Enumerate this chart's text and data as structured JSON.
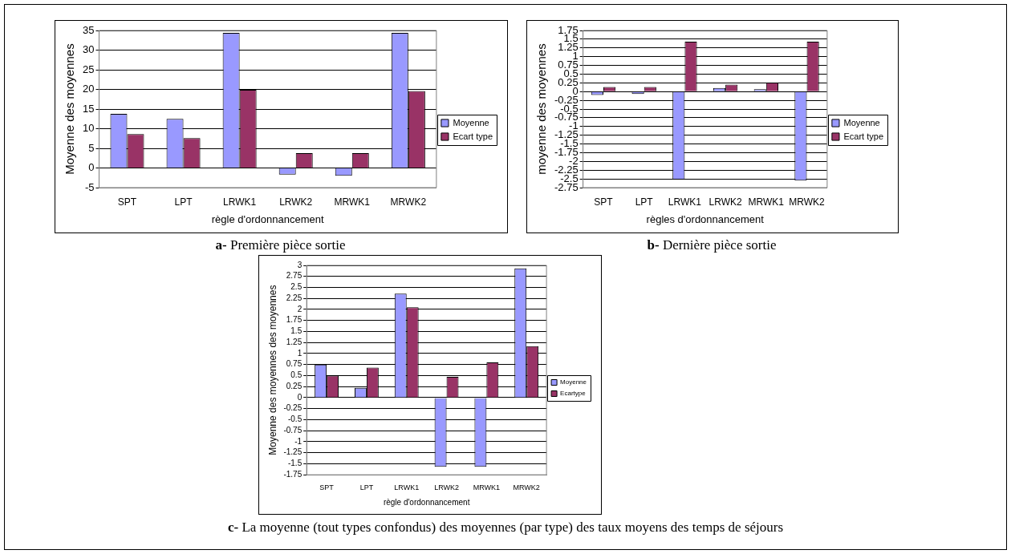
{
  "chart_data": [
    {
      "type": "bar",
      "xlabel": "règle d'ordonnancement",
      "ylabel": "Moyenne des moyennes",
      "categories": [
        "SPT",
        "LPT",
        "LRWK1",
        "LRWK2",
        "MRWK1",
        "MRWK2"
      ],
      "series": [
        {
          "name": "Moyenne",
          "color": "#9999ff",
          "values": [
            13.8,
            12.5,
            34.4,
            -1.7,
            -2.0,
            34.4
          ]
        },
        {
          "name": "Ecart type",
          "color": "#993366",
          "values": [
            8.6,
            7.6,
            19.9,
            3.8,
            3.8,
            19.6
          ]
        }
      ],
      "ylim": [
        -5,
        35
      ],
      "yticks": [
        -5,
        0,
        5,
        10,
        15,
        20,
        25,
        30,
        35
      ],
      "grid": "y",
      "legend": "right",
      "annotations": [
        "a- Première pièce sortie"
      ]
    },
    {
      "type": "bar",
      "xlabel": "règles d'ordonnancement",
      "ylabel": "moyenne des moyennes",
      "categories": [
        "SPT",
        "LPT",
        "LRWK1",
        "LRWK2",
        "MRWK1",
        "MRWK2"
      ],
      "series": [
        {
          "name": "Moyenne",
          "color": "#9999ff",
          "values": [
            -0.1,
            -0.07,
            -2.52,
            0.1,
            0.07,
            -2.55
          ]
        },
        {
          "name": "Ecart type",
          "color": "#993366",
          "values": [
            0.13,
            0.13,
            1.43,
            0.2,
            0.26,
            1.43
          ]
        }
      ],
      "ylim": [
        -2.75,
        1.75
      ],
      "yticks": [
        -2.75,
        -2.5,
        -2.25,
        -2,
        -1.75,
        -1.5,
        -1.25,
        -1,
        -0.75,
        -0.5,
        -0.25,
        0,
        0.25,
        0.5,
        0.75,
        1,
        1.25,
        1.5,
        1.75
      ],
      "grid": "y",
      "legend": "right",
      "annotations": [
        "b- Dernière pièce sortie"
      ]
    },
    {
      "type": "bar",
      "xlabel": "règle d'ordonnancement",
      "ylabel": "Moyenne des moyennes des moyennes",
      "categories": [
        "SPT",
        "LPT",
        "LRWK1",
        "LRWK2",
        "MRWK1",
        "MRWK2"
      ],
      "series": [
        {
          "name": "Moyenne",
          "color": "#9999ff",
          "values": [
            0.75,
            0.22,
            2.36,
            -1.57,
            -1.57,
            2.93
          ]
        },
        {
          "name": "Ecartype",
          "color": "#993366",
          "values": [
            0.5,
            0.68,
            2.05,
            0.47,
            0.8,
            1.17
          ]
        }
      ],
      "ylim": [
        -1.75,
        3
      ],
      "yticks": [
        -1.75,
        -1.5,
        -1.25,
        -1,
        -0.75,
        -0.5,
        -0.25,
        0,
        0.25,
        0.5,
        0.75,
        1,
        1.25,
        1.5,
        1.75,
        2,
        2.25,
        2.5,
        2.75,
        3
      ],
      "grid": "y",
      "legend": "right",
      "annotations": [
        "c- La moyenne (tout types confondus) des moyennes (par type) des taux moyens des temps de séjours"
      ]
    }
  ]
}
